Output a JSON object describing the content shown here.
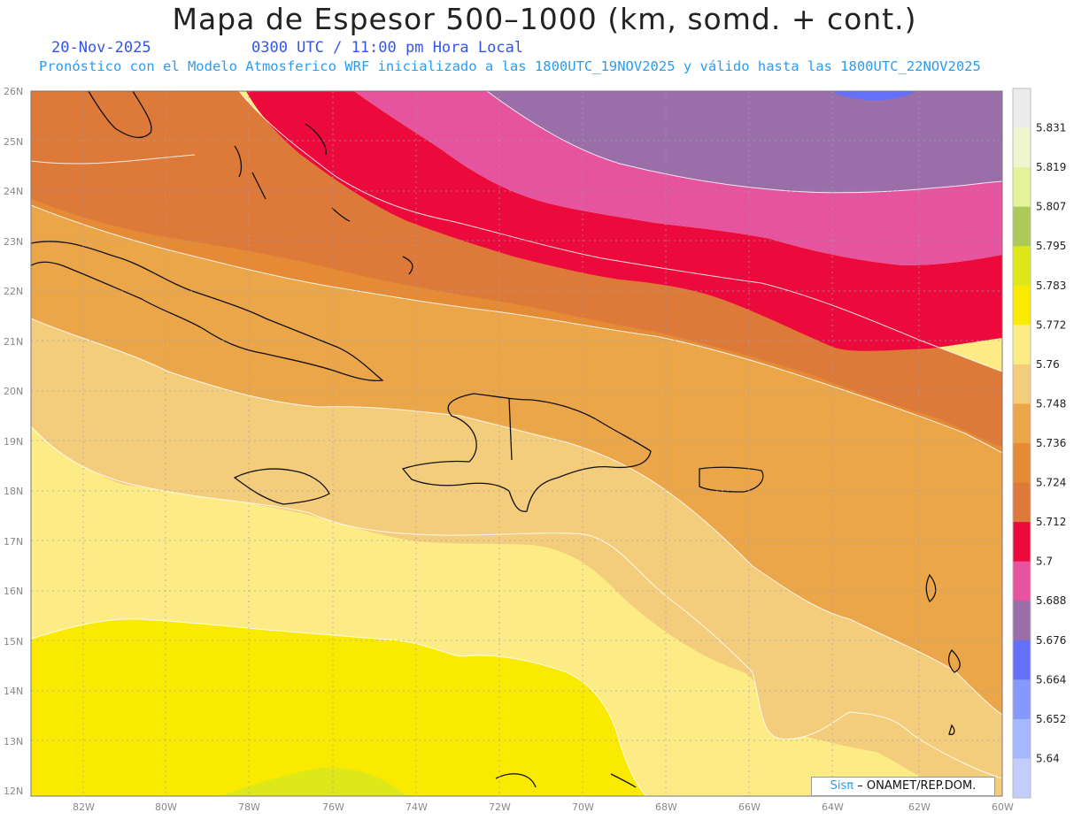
{
  "title": "Mapa de Espesor 500–1000 (km, somd. + cont.)",
  "date": "20-Nov-2025",
  "time": "0300 UTC / 11:00 pm Hora Local",
  "subtitle": "Pronóstico con el Modelo Atmosferico WRF inicializado a las 1800UTC_19NOV2025 y válido hasta las  1800UTC_22NOV2025",
  "credit": {
    "brand": "Sisπ",
    "text": "– ONAMET/REP.DOM."
  },
  "lat_labels": [
    "26N",
    "25N",
    "24N",
    "23N",
    "22N",
    "21N",
    "20N",
    "19N",
    "18N",
    "17N",
    "16N",
    "15N",
    "14N",
    "13N",
    "12N"
  ],
  "lon_labels": [
    "82W",
    "80W",
    "78W",
    "76W",
    "74W",
    "72W",
    "70W",
    "68W",
    "66W",
    "64W",
    "62W",
    "60W"
  ],
  "colorbar": {
    "labels": [
      "5.831",
      "5.819",
      "5.807",
      "5.795",
      "5.783",
      "5.772",
      "5.76",
      "5.748",
      "5.736",
      "5.724",
      "5.712",
      "5.7",
      "5.688",
      "5.676",
      "5.664",
      "5.652",
      "5.64"
    ],
    "colors": [
      "#ececec",
      "#f0f5d0",
      "#e2f39a",
      "#acc95a",
      "#dee818",
      "#faea00",
      "#fdec85",
      "#f3cd7b",
      "#eca64a",
      "#e58a35",
      "#dd7a39",
      "#ec0a3c",
      "#e6539f",
      "#9a6ea8",
      "#6470f8",
      "#8897fc",
      "#a6b8fd",
      "#c2cdfc"
    ]
  },
  "legend_colors": {
    "band_5760": "#fdec85",
    "band_5772": "#faea00",
    "band_5783": "#dee818",
    "band_5748": "#f3cd7b",
    "band_5736": "#eca64a",
    "band_5724": "#e58a35",
    "band_5712": "#dd7a39",
    "band_5700": "#ec0a3c",
    "band_5688": "#e6539f",
    "band_5676": "#9a6ea8",
    "band_5664": "#6470f8"
  }
}
